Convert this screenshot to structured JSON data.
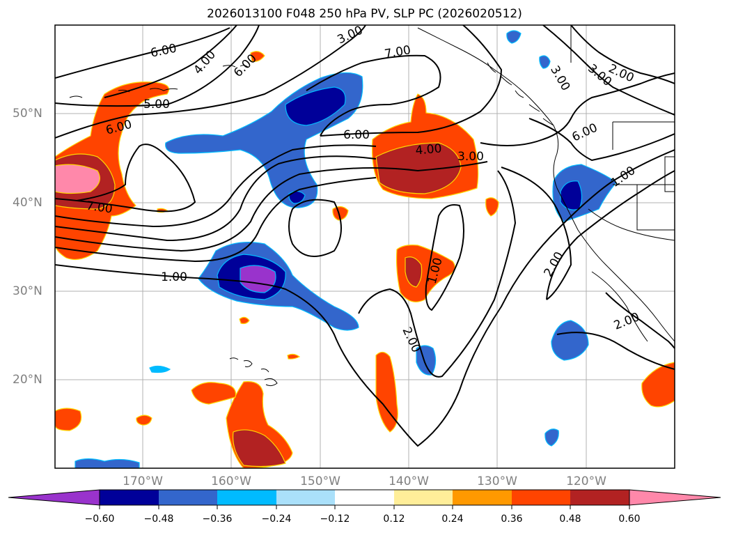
{
  "title": "2026013100 F048 250 hPa PV, SLP PC (2026020512)",
  "map": {
    "lat_labels": [
      "50°N",
      "40°N",
      "30°N",
      "20°N"
    ],
    "lon_labels": [
      "170°W",
      "160°W",
      "150°W",
      "140°W",
      "130°W",
      "120°W"
    ],
    "contour_labels": [
      "6.00",
      "4.00",
      "6.00",
      "3.00",
      "7.00",
      "3.00",
      "3.00",
      "2.00",
      "5.00",
      "6.00",
      "6.00",
      "6.00",
      "4.00",
      "3.00",
      "1.00",
      "7.00",
      "1.00",
      "1.00",
      "2.00",
      "2.00",
      "2.00"
    ]
  },
  "colorbar": {
    "colors": [
      "#9933cc",
      "#000099",
      "#3366cc",
      "#00bbff",
      "#aae0fa",
      "#ffffff",
      "#ffee99",
      "#ff9900",
      "#ff4400",
      "#b22222",
      "#ff88aa",
      "#ff88aa"
    ],
    "tick_labels": [
      "−0.60",
      "−0.48",
      "−0.36",
      "−0.24",
      "−0.12",
      "0.12",
      "0.24",
      "0.36",
      "0.48",
      "0.60"
    ]
  }
}
